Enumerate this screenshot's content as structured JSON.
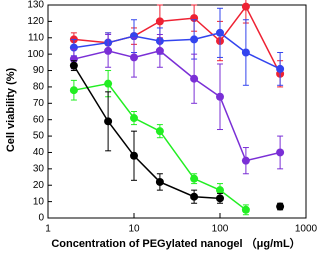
{
  "chart_data": {
    "type": "line",
    "x_label": "Concentration of PEGylated nanogel （μg/mL）",
    "y_label": "Cell viability (%)",
    "x": [
      2,
      5,
      10,
      20,
      50,
      100,
      200,
      500
    ],
    "x_log": true,
    "xlim": [
      1,
      1000
    ],
    "xticks": [
      1,
      10,
      100,
      1000
    ],
    "ylim": [
      0,
      130
    ],
    "yticks": [
      0,
      10,
      20,
      30,
      40,
      50,
      60,
      70,
      80,
      90,
      100,
      110,
      120,
      130
    ],
    "series": [
      {
        "color": "#ee2233",
        "values": [
          109,
          107,
          111,
          120,
          122,
          108,
          129,
          88
        ],
        "errors": [
          4,
          6,
          5,
          10,
          8,
          12,
          10,
          8
        ]
      },
      {
        "color": "#3344ee",
        "values": [
          104,
          107,
          111,
          108,
          109,
          113,
          101,
          91
        ],
        "errors": [
          5,
          6,
          10,
          8,
          12,
          15,
          20,
          10
        ]
      },
      {
        "color": "#7a2fd6",
        "values": [
          97,
          102,
          98,
          102,
          85,
          74,
          35,
          40
        ],
        "errors": [
          6,
          10,
          12,
          10,
          15,
          20,
          8,
          10
        ]
      },
      {
        "color": "#22ee22",
        "values": [
          78,
          82,
          61,
          53,
          24,
          17,
          5,
          null
        ],
        "errors": [
          6,
          8,
          4,
          4,
          3,
          4,
          3,
          null
        ]
      },
      {
        "color": "#000000",
        "values": [
          93,
          59,
          38,
          22,
          13,
          12,
          null,
          7
        ],
        "errors": [
          3,
          18,
          15,
          5,
          4,
          3,
          null,
          2
        ]
      }
    ]
  }
}
